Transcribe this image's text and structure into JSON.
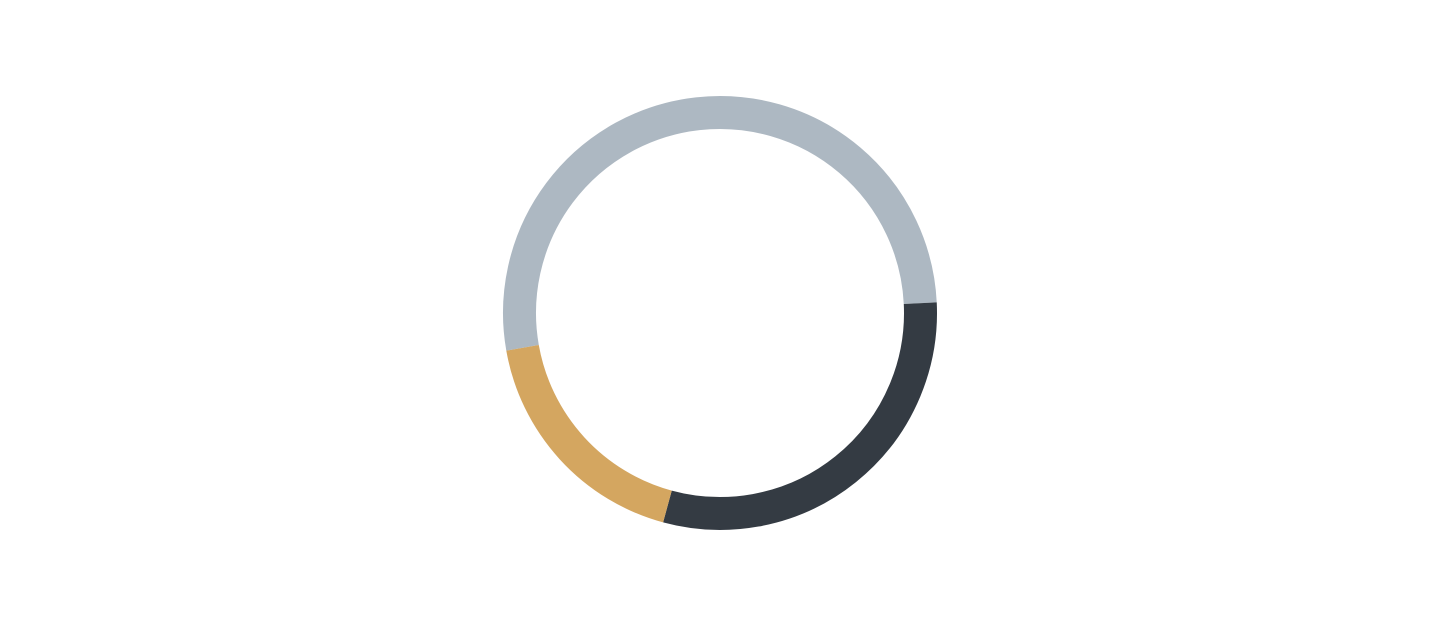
{
  "chart_data": {
    "type": "pie",
    "title": "",
    "legend": "none",
    "slices": [
      {
        "value": 52,
        "color": "#ADB8C2"
      },
      {
        "value": 30,
        "color": "#343B43"
      },
      {
        "value": 18,
        "color": "#D4A660"
      }
    ]
  }
}
